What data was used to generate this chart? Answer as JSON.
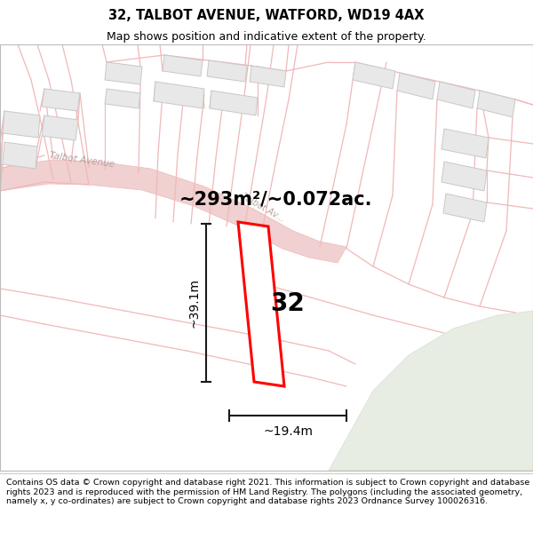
{
  "title": "32, TALBOT AVENUE, WATFORD, WD19 4AX",
  "subtitle": "Map shows position and indicative extent of the property.",
  "area_label": "~293m²/~0.072ac.",
  "height_label": "~39.1m",
  "width_label": "~19.4m",
  "number_label": "32",
  "footer": "Contains OS data © Crown copyright and database right 2021. This information is subject to Crown copyright and database rights 2023 and is reproduced with the permission of HM Land Registry. The polygons (including the associated geometry, namely x, y co-ordinates) are subject to Crown copyright and database rights 2023 Ordnance Survey 100026316.",
  "bg_color": "#ffffff",
  "map_bg": "#f9f5f5",
  "road_color": "#f0b8b8",
  "building_fill": "#e8e8e8",
  "building_edge": "#c8c8c8",
  "highlight_color": "#ff0000",
  "highlight_fill": "#ffffff",
  "grass_color": "#e8ede4",
  "road_label_color": "#b8a0a0",
  "dim_line_color": "#1a1a1a",
  "title_fontsize": 10.5,
  "subtitle_fontsize": 9,
  "area_fontsize": 15,
  "number_fontsize": 20,
  "dim_fontsize": 10,
  "footer_fontsize": 6.8
}
